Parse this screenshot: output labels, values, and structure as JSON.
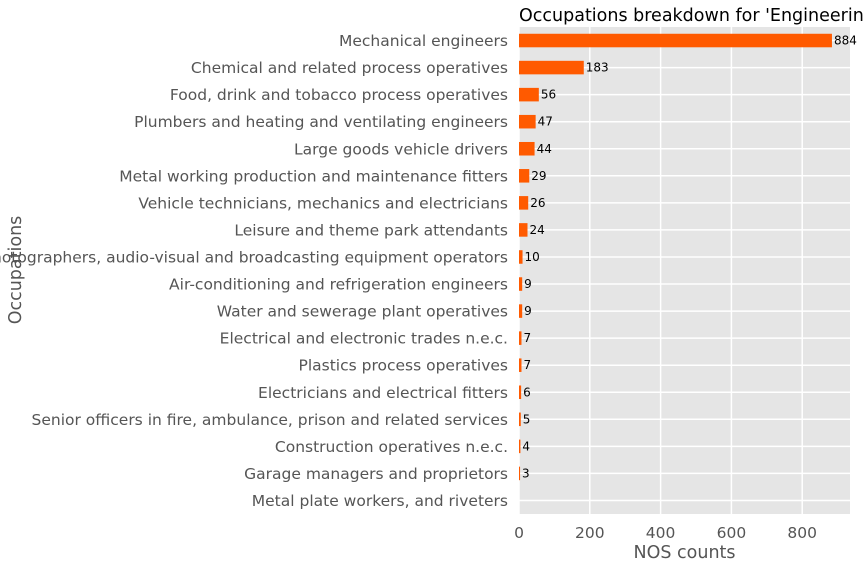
{
  "chart_data": {
    "type": "bar",
    "orientation": "horizontal",
    "title": "Occupations breakdown for 'Engineering'",
    "xlabel": "NOS counts",
    "ylabel": "Occupations",
    "categories": [
      "Mechanical engineers",
      "Chemical and related process operatives",
      "Food, drink and tobacco process operatives",
      "Plumbers and heating and ventilating engineers",
      "Large goods vehicle drivers",
      "Metal working production and maintenance fitters",
      "Vehicle technicians, mechanics and electricians",
      "Leisure and theme park attendants",
      "Photographers, audio-visual and broadcasting equipment operators",
      "Air-conditioning and refrigeration engineers",
      "Water and sewerage plant operatives",
      "Electrical and electronic trades n.e.c.",
      "Plastics process operatives",
      "Electricians and electrical fitters",
      "Senior officers in fire, ambulance, prison and related services",
      "Construction operatives n.e.c.",
      "Garage managers and proprietors",
      "Metal plate workers, and riveters"
    ],
    "values": [
      884,
      183,
      56,
      47,
      44,
      29,
      26,
      24,
      10,
      9,
      9,
      7,
      7,
      6,
      5,
      4,
      3,
      null
    ],
    "value_labels": [
      "884",
      "183",
      "56",
      "47",
      "44",
      "29",
      "26",
      "24",
      "10",
      "9",
      "9",
      "7",
      "7",
      "6",
      "5",
      "4",
      "3",
      ""
    ],
    "xticks": [
      0,
      200,
      400,
      600,
      800
    ],
    "xlim": [
      0,
      935
    ],
    "grid": true,
    "bar_color": "#ff5a00",
    "background_color": "#e5e5e5",
    "grid_color": "#ffffff"
  }
}
